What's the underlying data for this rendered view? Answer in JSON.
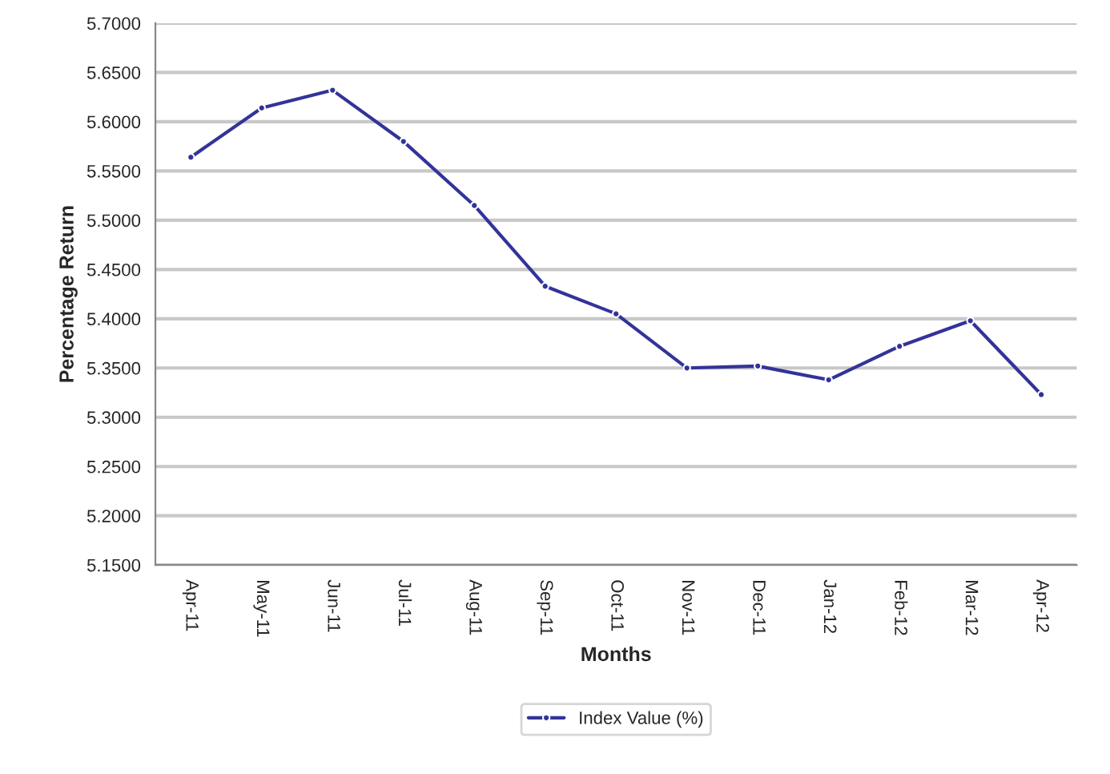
{
  "chart_data": {
    "type": "line",
    "xlabel": "Months",
    "ylabel": "Percentage Return",
    "categories": [
      "Apr-11",
      "May-11",
      "Jun-11",
      "Jul-11",
      "Aug-11",
      "Sep-11",
      "Oct-11",
      "Nov-11",
      "Dec-11",
      "Jan-12",
      "Feb-12",
      "Mar-12",
      "Apr-12"
    ],
    "series": [
      {
        "name": "Index Value (%)",
        "color": "#333399",
        "values": [
          5.564,
          5.614,
          5.632,
          5.58,
          5.515,
          5.433,
          5.405,
          5.35,
          5.352,
          5.338,
          5.372,
          5.398,
          5.323
        ]
      }
    ],
    "ylim": [
      5.15,
      5.7
    ],
    "yticks": [
      {
        "value": 5.15,
        "label": "5.1500"
      },
      {
        "value": 5.2,
        "label": "5.2000"
      },
      {
        "value": 5.25,
        "label": "5.2500"
      },
      {
        "value": 5.3,
        "label": "5.3000"
      },
      {
        "value": 5.35,
        "label": "5.3500"
      },
      {
        "value": 5.4,
        "label": "5.4000"
      },
      {
        "value": 5.45,
        "label": "5.4500"
      },
      {
        "value": 5.5,
        "label": "5.5000"
      },
      {
        "value": 5.55,
        "label": "5.5500"
      },
      {
        "value": 5.6,
        "label": "5.6000"
      },
      {
        "value": 5.65,
        "label": "5.6500"
      },
      {
        "value": 5.7,
        "label": "5.7000"
      }
    ],
    "grid": "y",
    "legend": "bottom",
    "marker": "circle",
    "line_style": "solid"
  }
}
